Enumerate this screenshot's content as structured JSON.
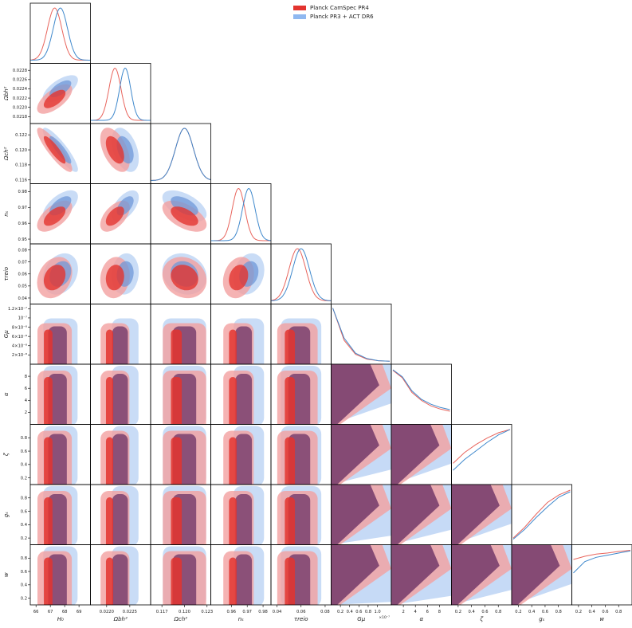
{
  "chart_data": {
    "type": "triangle-corner",
    "title": "",
    "legend": {
      "placement": "top-center",
      "entries": [
        {
          "name": "Planck CamSpec PR4",
          "color": "#e3342f"
        },
        {
          "name": "Planck PR3 + ACT DR6",
          "color": "#8fb8f0"
        }
      ]
    },
    "series_colors": {
      "red_inner": "#e3342f",
      "red_outer": "#f2a0a0",
      "blue_inner": "#6f98d8",
      "blue_outer": "#bcd3f4",
      "overlap": "#7a3f6e",
      "red_line": "#e8645c",
      "blue_line": "#3f88cc"
    },
    "parameters": [
      {
        "label": "H₀",
        "range": [
          65.6,
          69.8
        ],
        "ticks": [
          66,
          67,
          68,
          69
        ],
        "tick_labels": [
          "66",
          "67",
          "68",
          "69"
        ],
        "red": [
          67.3,
          0.5
        ],
        "blue": [
          67.7,
          0.5
        ]
      },
      {
        "label": "Ωbh²",
        "range": [
          0.02165,
          0.02295
        ],
        "ticks": [
          0.0218,
          0.022,
          0.0222,
          0.0224,
          0.0226,
          0.0228
        ],
        "tick_labels": [
          "0.0218",
          "0.0220",
          "0.0222",
          "0.0224",
          "0.0226",
          "0.0228"
        ],
        "xticks": [
          0.022,
          0.0225
        ],
        "xtick_labels": [
          "0.0220",
          "0.0225"
        ],
        "red": [
          0.02218,
          0.00013
        ],
        "blue": [
          0.0224,
          0.00012
        ]
      },
      {
        "label": "Ωch²",
        "range": [
          0.1155,
          0.1235
        ],
        "ticks": [
          0.116,
          0.118,
          0.12,
          0.122
        ],
        "tick_labels": [
          "0.116",
          "0.118",
          "0.120",
          "0.122"
        ],
        "xticks": [
          0.117,
          0.12,
          0.123
        ],
        "xtick_labels": [
          "0.117",
          "0.120",
          "0.123"
        ],
        "red": [
          0.12,
          0.0012
        ],
        "blue": [
          0.12,
          0.0012
        ]
      },
      {
        "label": "nₛ",
        "range": [
          0.947,
          0.985
        ],
        "ticks": [
          0.95,
          0.96,
          0.97,
          0.98
        ],
        "tick_labels": [
          "0.95",
          "0.96",
          "0.97",
          "0.98"
        ],
        "xticks": [
          0.96,
          0.97,
          0.98
        ],
        "xtick_labels": [
          "0.96",
          "0.97",
          "0.98"
        ],
        "red": [
          0.9645,
          0.004
        ],
        "blue": [
          0.971,
          0.004
        ]
      },
      {
        "label": "τreio",
        "range": [
          0.035,
          0.085
        ],
        "ticks": [
          0.04,
          0.05,
          0.06,
          0.07,
          0.08
        ],
        "tick_labels": [
          "0.04",
          "0.05",
          "0.06",
          "0.07",
          "0.08"
        ],
        "xticks": [
          0.04,
          0.06,
          0.08
        ],
        "xtick_labels": [
          "0.04",
          "0.06",
          "0.08"
        ],
        "red": [
          0.057,
          0.007
        ],
        "blue": [
          0.06,
          0.007
        ]
      },
      {
        "label": "Gμ",
        "range": [
          0,
          1.3
        ],
        "ticks": [
          0.2,
          0.4,
          0.6,
          0.8,
          1.0,
          1.2
        ],
        "tick_labels": [
          "2×10⁻⁸",
          "4×10⁻⁸",
          "6×10⁻⁸",
          "8×10⁻⁸",
          "10⁻⁷",
          "1.2×10⁻⁷"
        ],
        "xticks": [
          0.2,
          0.4,
          0.6,
          0.8,
          1.0
        ],
        "xtick_labels": [
          "0.2",
          "0.4",
          "0.6",
          "0.8",
          "1.0"
        ],
        "x_offset_label": "×10⁻⁷"
      },
      {
        "label": "α",
        "range": [
          0,
          10
        ],
        "ticks": [
          2,
          4,
          6,
          8
        ],
        "tick_labels": [
          "2",
          "4",
          "6",
          "8"
        ]
      },
      {
        "label": "ζ",
        "range": [
          0.1,
          1.0
        ],
        "ticks": [
          0.2,
          0.4,
          0.6,
          0.8
        ],
        "tick_labels": [
          "0.2",
          "0.4",
          "0.6",
          "0.8"
        ]
      },
      {
        "label": "gₛ",
        "range": [
          0.1,
          1.0
        ],
        "ticks": [
          0.2,
          0.4,
          0.6,
          0.8
        ],
        "tick_labels": [
          "0.2",
          "0.4",
          "0.6",
          "0.8"
        ]
      },
      {
        "label": "w",
        "range": [
          0.1,
          1.0
        ],
        "ticks": [
          0.2,
          0.4,
          0.6,
          0.8
        ],
        "tick_labels": [
          "0.2",
          "0.4",
          "0.6",
          "0.8"
        ]
      }
    ],
    "correlations": {
      "0-1": [
        0.65,
        0.65
      ],
      "0-2": [
        -0.88,
        -0.88
      ],
      "0-3": [
        0.6,
        0.6
      ],
      "0-4": [
        0.25,
        0.25
      ],
      "1-2": [
        -0.5,
        -0.4
      ],
      "1-3": [
        0.55,
        0.55
      ],
      "1-4": [
        0.1,
        0.1
      ],
      "2-3": [
        -0.55,
        -0.55
      ],
      "2-4": [
        -0.15,
        -0.15
      ],
      "3-4": [
        0.2,
        0.2
      ]
    },
    "flat_1d": {
      "Gμ": {
        "red": [
          1.0,
          0.4,
          0.14,
          0.05,
          0.02,
          0.01
        ],
        "blue": [
          1.0,
          0.44,
          0.16,
          0.06,
          0.02,
          0.01
        ]
      },
      "α": {
        "red": [
          0.96,
          0.82,
          0.55,
          0.4,
          0.3,
          0.24,
          0.2
        ],
        "blue": [
          0.97,
          0.84,
          0.58,
          0.42,
          0.33,
          0.27,
          0.23
        ]
      },
      "ζ": {
        "red": [
          0.35,
          0.55,
          0.7,
          0.82,
          0.92,
          0.98
        ],
        "blue": [
          0.22,
          0.42,
          0.58,
          0.74,
          0.88,
          0.98
        ]
      },
      "gₛ": {
        "red": [
          0.08,
          0.28,
          0.52,
          0.74,
          0.88,
          0.97
        ],
        "blue": [
          0.06,
          0.24,
          0.46,
          0.66,
          0.84,
          0.94
        ]
      },
      "w": {
        "red": [
          0.8,
          0.86,
          0.9,
          0.92,
          0.95,
          0.97
        ],
        "blue": [
          0.55,
          0.76,
          0.84,
          0.88,
          0.92,
          0.96
        ]
      }
    }
  }
}
